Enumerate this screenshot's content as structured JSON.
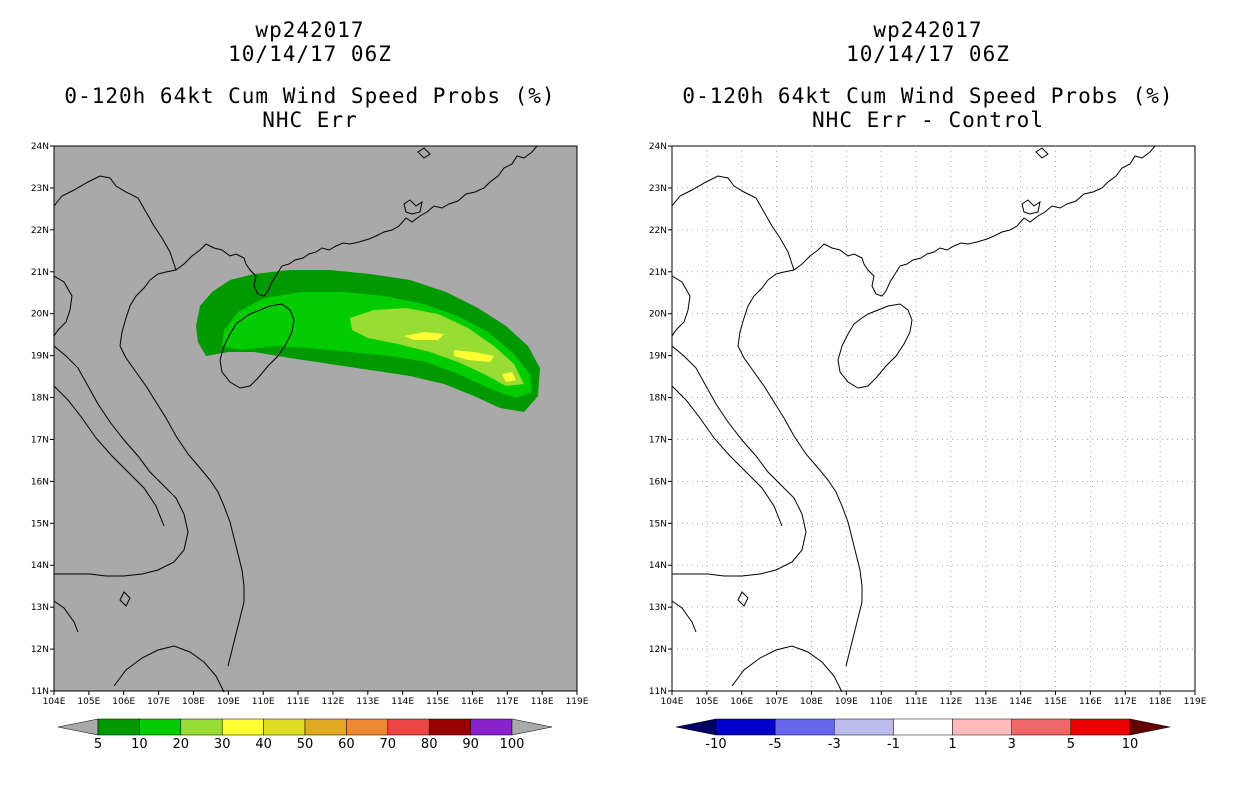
{
  "panels": [
    {
      "title_line1": "wp242017",
      "title_line2": "10/14/17 06Z",
      "title_line3": "0-120h 64kt Cum Wind Speed Probs (%)",
      "title_line4": "NHC Err",
      "background": "#a9a9a9",
      "colorbar_labels": [
        "5",
        "10",
        "20",
        "30",
        "40",
        "50",
        "60",
        "70",
        "80",
        "90",
        "100"
      ],
      "colorbar_colors": [
        "#009900",
        "#00cc00",
        "#99dd33",
        "#ffff33",
        "#dddd22",
        "#ddaa22",
        "#ee8833",
        "#ee4444",
        "#990000",
        "#8822cc"
      ]
    },
    {
      "title_line1": "wp242017",
      "title_line2": "10/14/17 06Z",
      "title_line3": "0-120h 64kt Cum Wind Speed Probs (%)",
      "title_line4": "NHC Err - Control",
      "background": "#ffffff",
      "colorbar_labels": [
        "-10",
        "-5",
        "-3",
        "-1",
        "1",
        "3",
        "5",
        "10"
      ],
      "colorbar_colors": [
        "#0000cc",
        "#6666ee",
        "#bbbbee",
        "#ffffff",
        "#ffbbbb",
        "#ee6666",
        "#ee0000"
      ]
    }
  ],
  "map": {
    "lon_labels": [
      "104E",
      "105E",
      "106E",
      "107E",
      "108E",
      "109E",
      "110E",
      "111E",
      "112E",
      "113E",
      "114E",
      "115E",
      "116E",
      "117E",
      "118E",
      "119E"
    ],
    "lat_labels": [
      "24N",
      "23N",
      "22N",
      "21N",
      "20N",
      "19N",
      "18N",
      "17N",
      "16N",
      "15N",
      "14N",
      "13N",
      "12N",
      "11N"
    ]
  },
  "prob_contours": {
    "5": "green-dark",
    "10": "green",
    "20": "light-green",
    "30": "yellow"
  }
}
